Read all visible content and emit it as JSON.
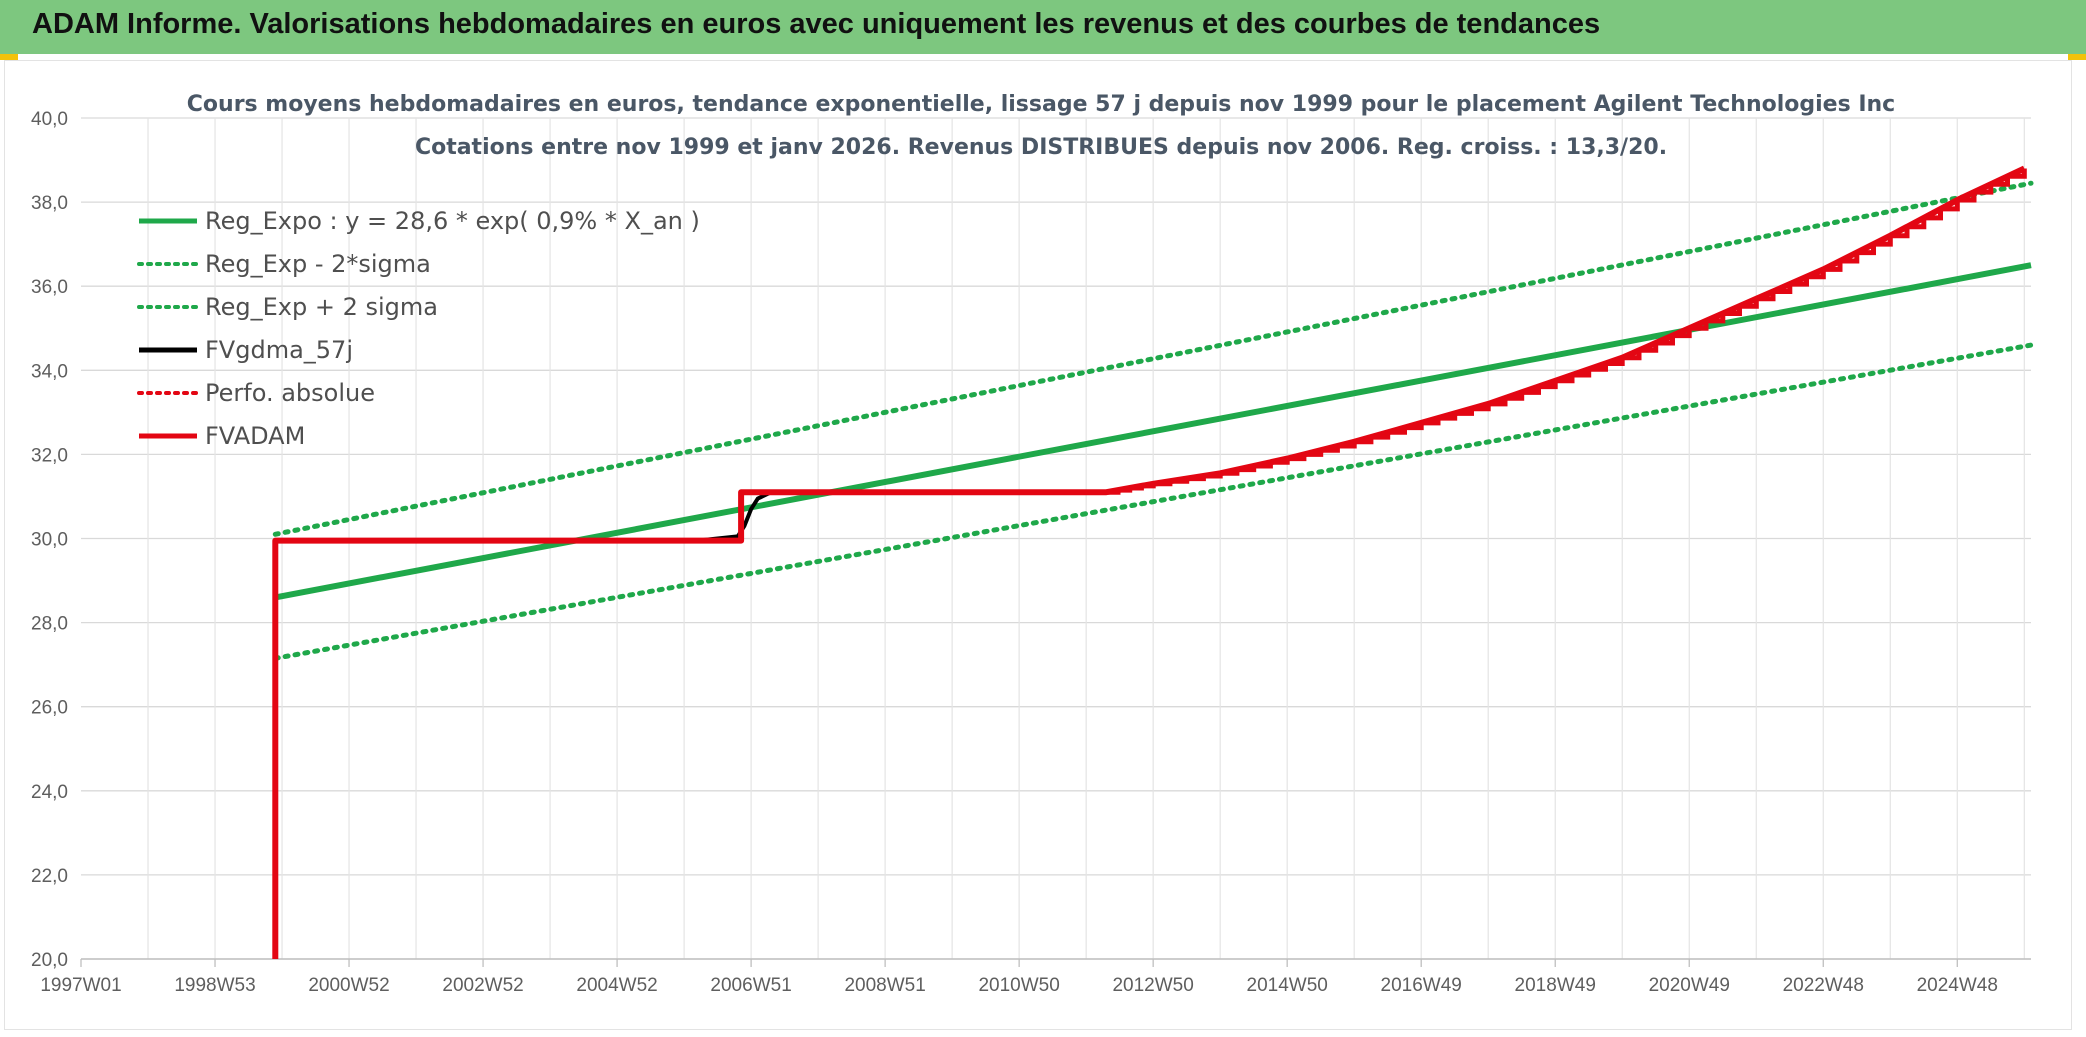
{
  "header": {
    "title": "ADAM Informe. Valorisations hebdomadaires en euros avec uniquement les revenus et des courbes de tendances"
  },
  "chart_data": {
    "type": "line",
    "title": "Cours moyens hebdomadaires en euros, tendance exponentielle, lissage 57 j depuis nov 1999 pour le placement Agilent Technologies Inc",
    "subtitle": "Cotations entre nov 1999 et janv 2026. Revenus DISTRIBUES depuis nov 2006. Reg. croiss. : 13,3/20.",
    "xlabel": "",
    "ylabel": "",
    "ylim": [
      20,
      40
    ],
    "xlim": [
      1997.0,
      2026.1
    ],
    "x_tick_labels": [
      "1997W01",
      "1998W53",
      "2000W52",
      "2002W52",
      "2004W52",
      "2006W51",
      "2008W51",
      "2010W50",
      "2012W50",
      "2014W50",
      "2016W49",
      "2018W49",
      "2020W49",
      "2022W48",
      "2024W48"
    ],
    "x_tick_years": [
      1997.0,
      1999.0,
      2001.0,
      2003.0,
      2005.0,
      2007.0,
      2009.0,
      2011.0,
      2013.0,
      2015.0,
      2017.0,
      2019.0,
      2021.0,
      2023.0,
      2025.0
    ],
    "y_tick_labels": [
      "20,0",
      "22,0",
      "24,0",
      "26,0",
      "28,0",
      "30,0",
      "32,0",
      "34,0",
      "36,0",
      "38,0",
      "40,0"
    ],
    "y_ticks": [
      20,
      22,
      24,
      26,
      28,
      30,
      32,
      34,
      36,
      38,
      40
    ],
    "grid": true,
    "legend_position": "top-left",
    "series": [
      {
        "name": "Reg_Expo : y = 28,6 * exp( 0,9% *  X_an )",
        "color": "#1fa84a",
        "style": "solid",
        "x": [
          1999.9,
          2026.1
        ],
        "y": [
          28.6,
          36.5
        ]
      },
      {
        "name": "Reg_Exp - 2*sigma",
        "color": "#1fa84a",
        "style": "dotted",
        "x": [
          1999.9,
          2026.1
        ],
        "y": [
          27.15,
          34.6
        ]
      },
      {
        "name": "Reg_Exp + 2 sigma",
        "color": "#1fa84a",
        "style": "dotted",
        "x": [
          1999.9,
          2026.1
        ],
        "y": [
          30.1,
          38.45
        ]
      },
      {
        "name": "FVgdma_57j",
        "color": "#000000",
        "style": "solid",
        "x": [
          2005.6,
          2006.2,
          2006.8,
          2006.9,
          2007.0,
          2007.1,
          2007.3
        ],
        "y": [
          29.95,
          29.95,
          30.05,
          30.3,
          30.7,
          30.95,
          31.1
        ]
      },
      {
        "name": "Perfo. absolue",
        "color": "#e30613",
        "style": "dotted",
        "x": [],
        "y": []
      },
      {
        "name": "FVADAM",
        "color": "#e30613",
        "style": "solid",
        "x": [
          1999.9,
          1999.9,
          2006.85,
          2006.85,
          2012.3,
          2013.0,
          2014.0,
          2015.0,
          2016.0,
          2017.0,
          2018.0,
          2019.0,
          2020.0,
          2021.0,
          2022.0,
          2023.0,
          2024.0,
          2025.0,
          2026.0
        ],
        "y": [
          20.0,
          29.95,
          29.95,
          31.1,
          31.1,
          31.3,
          31.55,
          31.9,
          32.3,
          32.75,
          33.2,
          33.75,
          34.3,
          35.0,
          35.7,
          36.4,
          37.2,
          38.05,
          38.8
        ]
      }
    ]
  }
}
